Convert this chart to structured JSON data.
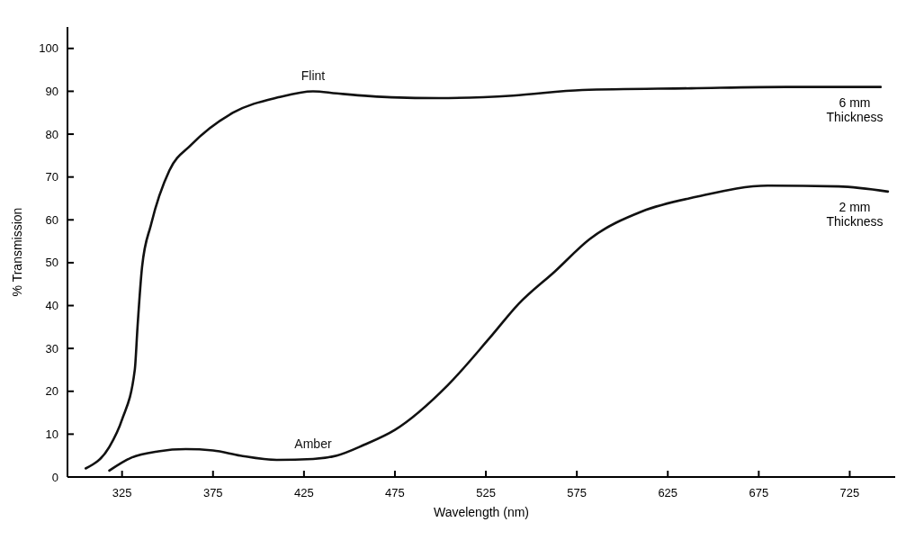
{
  "chart_data": {
    "type": "line",
    "xlabel": "Wavelength (nm)",
    "ylabel": "% Transmission",
    "xlim": [
      295,
      750
    ],
    "ylim": [
      0,
      105
    ],
    "xticks": [
      325,
      375,
      425,
      475,
      525,
      575,
      625,
      675,
      725
    ],
    "yticks": [
      0,
      10,
      20,
      30,
      40,
      50,
      60,
      70,
      80,
      90,
      100
    ],
    "grid": false,
    "legend": false,
    "marker": "none",
    "line_style": "solid",
    "series": [
      {
        "name": "Flint",
        "color": "#111111",
        "x": [
          305,
          318,
          325,
          332,
          333.5,
          336,
          341,
          351,
          363,
          386,
          411,
          430,
          443,
          473,
          499,
          540,
          578,
          638,
          690,
          742
        ],
        "values": [
          2,
          7,
          13.4,
          25,
          35,
          49,
          59,
          71.5,
          77.5,
          85,
          88.6,
          90,
          89.5,
          88.6,
          88.4,
          89,
          90.3,
          90.7,
          91,
          91
        ]
      },
      {
        "name": "Amber",
        "color": "#111111",
        "x": [
          318,
          330,
          345,
          360,
          375,
          390,
          410,
          430,
          443,
          458,
          475,
          504,
          527,
          543,
          563,
          582,
          611,
          641,
          680,
          719,
          746
        ],
        "values": [
          1.5,
          4.5,
          6,
          6.5,
          6.2,
          5,
          4,
          4.2,
          5,
          7.5,
          11,
          21.4,
          32.4,
          40.4,
          48,
          55.5,
          62,
          65.4,
          68,
          67.8,
          66.6
        ]
      }
    ],
    "annotations": [
      "6 mm Thickness",
      "2 mm Thickness"
    ]
  }
}
